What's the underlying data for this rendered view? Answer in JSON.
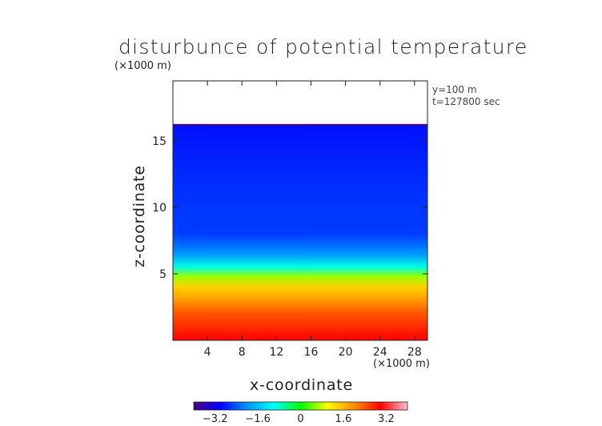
{
  "chart_data": {
    "type": "heatmap",
    "title": "disturbunce of potential temperature",
    "xlabel": "x-coordinate",
    "ylabel": "z-coordinate",
    "x_scale_label": "(×1000 m)",
    "y_scale_label": "(×1000 m)",
    "annotations": [
      "y=100 m",
      "t=127800 sec"
    ],
    "xlim": [
      0,
      29.5
    ],
    "ylim": [
      0,
      19.5
    ],
    "x_ticks": [
      4,
      8,
      12,
      16,
      20,
      24,
      28
    ],
    "x_tick_labels": [
      "4",
      "8",
      "12",
      "16",
      "20",
      "24",
      "28"
    ],
    "y_ticks": [
      5,
      10,
      15
    ],
    "y_tick_labels": [
      "5",
      "10",
      "15"
    ],
    "data_top_z": 16.2,
    "colorbar": {
      "range": [
        -4,
        4
      ],
      "ticks": [
        -3.2,
        -1.6,
        0,
        1.6,
        3.2
      ],
      "tick_labels": [
        "−3.2",
        "−1.6",
        "0",
        "1.6",
        "3.2"
      ],
      "colors": [
        "#4b0082",
        "#0000ff",
        "#0096ff",
        "#00ffff",
        "#00ff00",
        "#ffff00",
        "#ff8c00",
        "#ff0000",
        "#ffc0cb"
      ]
    },
    "field_profile": {
      "z": [
        0,
        2,
        3,
        4,
        4.8,
        5.5,
        6.5,
        8,
        12,
        16.2
      ],
      "value": [
        3.0,
        2.4,
        1.9,
        1.4,
        0.6,
        -0.9,
        -2.0,
        -2.6,
        -2.7,
        -2.9
      ]
    },
    "grid": false
  }
}
